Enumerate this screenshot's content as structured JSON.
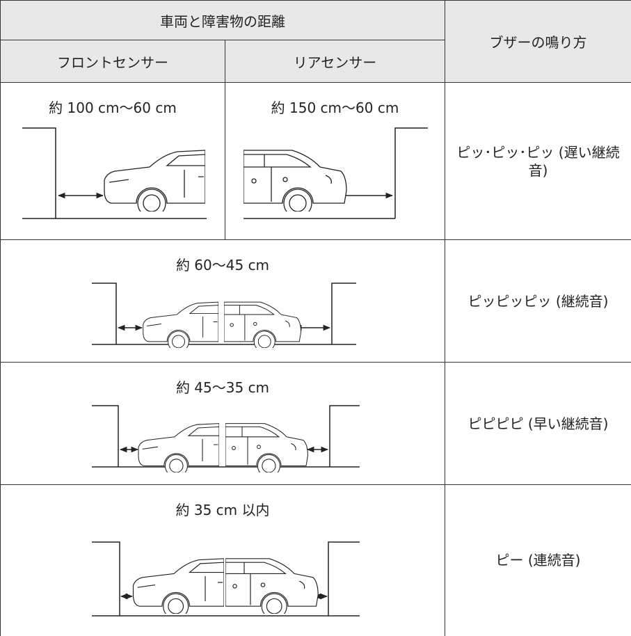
{
  "table": {
    "header": {
      "distance": "車両と障害物の距離",
      "buzzer": "ブザーの鳴り方",
      "front": "フロントセンサー",
      "rear": "リアセンサー"
    },
    "rows": [
      {
        "front": "約 100 cm〜60 cm",
        "rear": "約 150 cm〜60 cm",
        "buzzer": "ピッ･ピッ･ピッ (遅い継続音)"
      },
      {
        "distance": "約 60〜45 cm",
        "buzzer": "ピッピッピッ (継続音)"
      },
      {
        "distance": "約 45〜35 cm",
        "buzzer": "ピピピピ (早い継続音)"
      },
      {
        "distance": "約 35 cm 以内",
        "buzzer": "ピー (連続音)"
      }
    ]
  }
}
